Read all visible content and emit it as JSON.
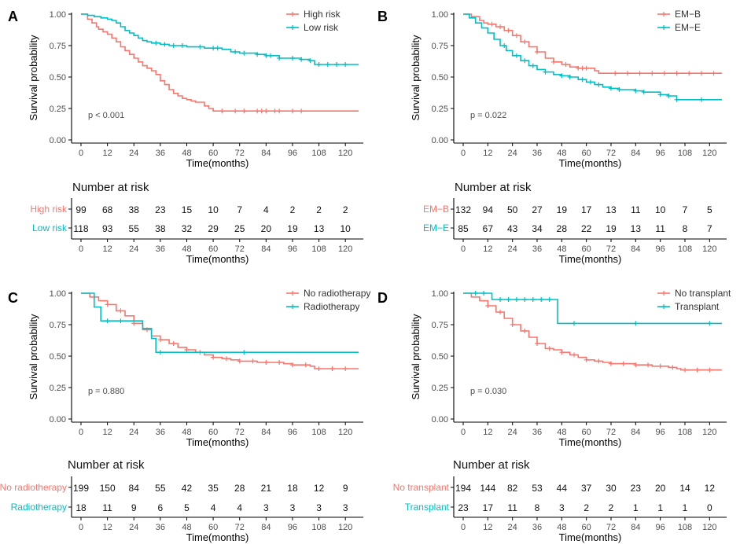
{
  "colors": {
    "red": "#F8766D",
    "teal": "#00BFC4",
    "axis": "#000000",
    "text": "#4d4d4d"
  },
  "chart_data": [
    {
      "type": "line",
      "panel_label": "A",
      "ylabel": "Survival probability",
      "xlabel": "Time(months)",
      "xlim": [
        0,
        126
      ],
      "ylim": [
        0,
        1
      ],
      "x_ticks": [
        "0",
        "12",
        "24",
        "36",
        "48",
        "60",
        "72",
        "84",
        "96",
        "108",
        "120"
      ],
      "y_ticks": [
        "0.00",
        "0.25",
        "0.50",
        "0.75",
        "1.00"
      ],
      "pvalue": "p < 0.001",
      "legend": [
        "High risk",
        "Low risk"
      ],
      "series": [
        {
          "name": "High risk",
          "color": "red",
          "x": [
            0,
            3,
            5,
            7,
            8,
            10,
            12,
            14,
            16,
            18,
            20,
            22,
            24,
            26,
            28,
            30,
            32,
            34,
            36,
            38,
            40,
            42,
            44,
            46,
            48,
            50,
            52,
            54,
            56,
            58,
            60,
            126
          ],
          "y": [
            1.0,
            0.96,
            0.93,
            0.9,
            0.88,
            0.86,
            0.84,
            0.81,
            0.78,
            0.74,
            0.71,
            0.68,
            0.65,
            0.62,
            0.59,
            0.57,
            0.55,
            0.52,
            0.47,
            0.44,
            0.4,
            0.37,
            0.35,
            0.33,
            0.32,
            0.31,
            0.3,
            0.3,
            0.27,
            0.25,
            0.23,
            0.23
          ],
          "censor_x": [
            64,
            70,
            74,
            80,
            82,
            84,
            88,
            90,
            96,
            100
          ]
        },
        {
          "name": "Low risk",
          "color": "teal",
          "x": [
            0,
            3,
            6,
            9,
            12,
            14,
            16,
            18,
            20,
            22,
            24,
            26,
            28,
            30,
            32,
            34,
            36,
            38,
            40,
            44,
            48,
            52,
            56,
            60,
            64,
            68,
            72,
            80,
            84,
            88,
            90,
            96,
            100,
            104,
            106,
            126
          ],
          "y": [
            1.0,
            0.99,
            0.98,
            0.97,
            0.96,
            0.95,
            0.93,
            0.9,
            0.87,
            0.85,
            0.83,
            0.81,
            0.79,
            0.78,
            0.77,
            0.77,
            0.76,
            0.76,
            0.75,
            0.75,
            0.74,
            0.74,
            0.73,
            0.73,
            0.72,
            0.7,
            0.69,
            0.68,
            0.67,
            0.67,
            0.65,
            0.65,
            0.64,
            0.63,
            0.6,
            0.6
          ],
          "censor_x": [
            34,
            38,
            42,
            46,
            54,
            60,
            62,
            70,
            74,
            80,
            84,
            86,
            90,
            96,
            100,
            104,
            108,
            112,
            116,
            120
          ]
        }
      ],
      "risk_table": {
        "title": "Number at risk",
        "rows": [
          {
            "label": "High risk",
            "color": "red",
            "values": [
              "99",
              "68",
              "38",
              "23",
              "15",
              "10",
              "7",
              "4",
              "2",
              "2",
              "2"
            ]
          },
          {
            "label": "Low risk",
            "color": "teal",
            "values": [
              "118",
              "93",
              "55",
              "38",
              "32",
              "29",
              "25",
              "20",
              "19",
              "13",
              "10"
            ]
          }
        ]
      }
    },
    {
      "type": "line",
      "panel_label": "B",
      "ylabel": "Survival probability",
      "xlabel": "Time(months)",
      "xlim": [
        0,
        126
      ],
      "ylim": [
        0,
        1
      ],
      "x_ticks": [
        "0",
        "12",
        "24",
        "36",
        "48",
        "60",
        "72",
        "84",
        "96",
        "108",
        "120"
      ],
      "y_ticks": [
        "0.00",
        "0.25",
        "0.50",
        "0.75",
        "1.00"
      ],
      "pvalue": "p = 0.022",
      "legend": [
        "EM−B",
        "EM−E"
      ],
      "series": [
        {
          "name": "EM−B",
          "color": "red",
          "x": [
            0,
            4,
            8,
            10,
            12,
            16,
            20,
            24,
            28,
            32,
            36,
            40,
            44,
            48,
            52,
            56,
            60,
            62,
            64,
            66,
            126
          ],
          "y": [
            1.0,
            0.98,
            0.95,
            0.93,
            0.92,
            0.9,
            0.87,
            0.83,
            0.78,
            0.74,
            0.7,
            0.65,
            0.62,
            0.6,
            0.58,
            0.57,
            0.57,
            0.57,
            0.55,
            0.53,
            0.53
          ],
          "censor_x": [
            14,
            18,
            22,
            26,
            30,
            36,
            44,
            50,
            56,
            58,
            60,
            74,
            80,
            86,
            92,
            98,
            104,
            110,
            116,
            122
          ]
        },
        {
          "name": "EM−E",
          "color": "teal",
          "x": [
            0,
            3,
            6,
            9,
            12,
            15,
            18,
            21,
            24,
            28,
            32,
            36,
            40,
            44,
            48,
            52,
            56,
            60,
            64,
            68,
            72,
            76,
            80,
            84,
            88,
            96,
            100,
            104,
            126
          ],
          "y": [
            1.0,
            0.97,
            0.93,
            0.89,
            0.85,
            0.8,
            0.75,
            0.71,
            0.67,
            0.63,
            0.59,
            0.56,
            0.54,
            0.52,
            0.51,
            0.5,
            0.48,
            0.46,
            0.44,
            0.42,
            0.41,
            0.4,
            0.4,
            0.39,
            0.38,
            0.36,
            0.35,
            0.32,
            0.32
          ],
          "censor_x": [
            20,
            26,
            30,
            34,
            40,
            48,
            52,
            58,
            62,
            66,
            72,
            76,
            84,
            88,
            96,
            100,
            104,
            116
          ]
        }
      ],
      "risk_table": {
        "title": "Number at risk",
        "rows": [
          {
            "label": "EM−B",
            "color": "red",
            "values": [
              "132",
              "94",
              "50",
              "27",
              "19",
              "17",
              "13",
              "11",
              "10",
              "7",
              "5"
            ]
          },
          {
            "label": "EM−E",
            "color": "teal",
            "values": [
              "85",
              "67",
              "43",
              "34",
              "28",
              "22",
              "19",
              "13",
              "11",
              "8",
              "7"
            ]
          }
        ]
      }
    },
    {
      "type": "line",
      "panel_label": "C",
      "ylabel": "Survival probability",
      "xlabel": "Time(months)",
      "xlim": [
        0,
        126
      ],
      "ylim": [
        0,
        1
      ],
      "x_ticks": [
        "0",
        "12",
        "24",
        "36",
        "48",
        "60",
        "72",
        "84",
        "96",
        "108",
        "120"
      ],
      "y_ticks": [
        "0.00",
        "0.25",
        "0.50",
        "0.75",
        "1.00"
      ],
      "pvalue": "p = 0.880",
      "legend": [
        "No radiotherapy",
        "Radiotherapy"
      ],
      "series": [
        {
          "name": "No radiotherapy",
          "color": "red",
          "x": [
            0,
            4,
            8,
            12,
            16,
            20,
            24,
            28,
            32,
            36,
            40,
            44,
            48,
            52,
            56,
            60,
            64,
            68,
            72,
            76,
            80,
            84,
            88,
            92,
            96,
            100,
            104,
            106,
            126
          ],
          "y": [
            1.0,
            0.97,
            0.94,
            0.91,
            0.86,
            0.82,
            0.76,
            0.71,
            0.66,
            0.63,
            0.6,
            0.57,
            0.55,
            0.53,
            0.51,
            0.49,
            0.48,
            0.47,
            0.46,
            0.46,
            0.45,
            0.45,
            0.45,
            0.44,
            0.43,
            0.43,
            0.42,
            0.4,
            0.4
          ],
          "censor_x": [
            12,
            18,
            24,
            30,
            36,
            42,
            48,
            54,
            60,
            66,
            72,
            78,
            84,
            90,
            96,
            102,
            108,
            114,
            120
          ]
        },
        {
          "name": "Radiotherapy",
          "color": "teal",
          "x": [
            0,
            6,
            9,
            18,
            28,
            32,
            34,
            126
          ],
          "y": [
            1.0,
            0.89,
            0.78,
            0.78,
            0.72,
            0.64,
            0.53,
            0.53
          ],
          "censor_x": [
            12,
            18,
            36,
            74
          ]
        }
      ],
      "risk_table": {
        "title": "Number at risk",
        "rows": [
          {
            "label": "No radiotherapy",
            "color": "red",
            "values": [
              "199",
              "150",
              "84",
              "55",
              "42",
              "35",
              "28",
              "21",
              "18",
              "12",
              "9"
            ]
          },
          {
            "label": "Radiotherapy",
            "color": "teal",
            "values": [
              "18",
              "11",
              "9",
              "6",
              "5",
              "4",
              "4",
              "3",
              "3",
              "3",
              "3"
            ]
          }
        ]
      }
    },
    {
      "type": "line",
      "panel_label": "D",
      "ylabel": "Survival probability",
      "xlabel": "Time(months)",
      "xlim": [
        0,
        126
      ],
      "ylim": [
        0,
        1
      ],
      "x_ticks": [
        "0",
        "12",
        "24",
        "36",
        "48",
        "60",
        "72",
        "84",
        "96",
        "108",
        "120"
      ],
      "y_ticks": [
        "0.00",
        "0.25",
        "0.50",
        "0.75",
        "1.00"
      ],
      "pvalue": "p = 0.030",
      "legend": [
        "No transplant",
        "Transplant"
      ],
      "series": [
        {
          "name": "No transplant",
          "color": "red",
          "x": [
            0,
            4,
            8,
            12,
            16,
            20,
            24,
            28,
            32,
            36,
            40,
            44,
            48,
            52,
            56,
            60,
            64,
            68,
            72,
            76,
            80,
            84,
            88,
            92,
            96,
            100,
            104,
            106,
            126
          ],
          "y": [
            1.0,
            0.97,
            0.94,
            0.9,
            0.85,
            0.8,
            0.75,
            0.7,
            0.65,
            0.6,
            0.56,
            0.55,
            0.53,
            0.51,
            0.49,
            0.47,
            0.46,
            0.45,
            0.44,
            0.44,
            0.44,
            0.43,
            0.43,
            0.42,
            0.42,
            0.41,
            0.4,
            0.39,
            0.39
          ],
          "censor_x": [
            12,
            18,
            24,
            30,
            36,
            42,
            48,
            54,
            60,
            66,
            72,
            78,
            84,
            90,
            96,
            102,
            108,
            114,
            120
          ]
        },
        {
          "name": "Transplant",
          "color": "teal",
          "x": [
            0,
            12,
            14,
            44,
            46,
            126
          ],
          "y": [
            1.0,
            1.0,
            0.95,
            0.95,
            0.76,
            0.76
          ],
          "censor_x": [
            6,
            10,
            18,
            22,
            26,
            30,
            34,
            38,
            42,
            54,
            84,
            120
          ]
        }
      ],
      "risk_table": {
        "title": "Number at risk",
        "rows": [
          {
            "label": "No transplant",
            "color": "red",
            "values": [
              "194",
              "144",
              "82",
              "53",
              "44",
              "37",
              "30",
              "23",
              "20",
              "14",
              "12"
            ]
          },
          {
            "label": "Transplant",
            "color": "teal",
            "values": [
              "23",
              "17",
              "11",
              "8",
              "3",
              "2",
              "2",
              "1",
              "1",
              "1",
              "0"
            ]
          }
        ]
      }
    }
  ]
}
